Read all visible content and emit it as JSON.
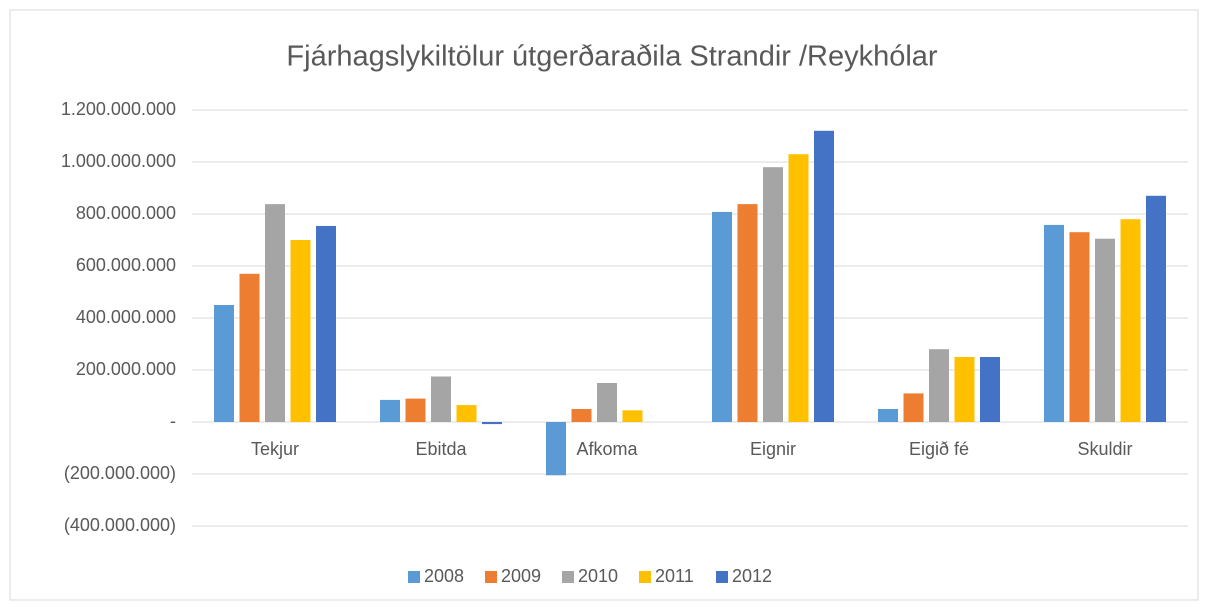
{
  "chart_data": {
    "type": "bar",
    "title": "Fjárhagslykiltölur útgerðaraðila Strandir /Reykhólar",
    "categories": [
      "Tekjur",
      "Ebitda",
      "Afkoma",
      "Eignir",
      "Eigið fé",
      "Skuldir"
    ],
    "series": [
      {
        "name": "2008",
        "color": "#5b9bd5",
        "values": [
          450000000,
          85000000,
          -205000000,
          808000000,
          50000000,
          758000000
        ]
      },
      {
        "name": "2009",
        "color": "#ed7d31",
        "values": [
          570000000,
          90000000,
          50000000,
          838000000,
          110000000,
          730000000
        ]
      },
      {
        "name": "2010",
        "color": "#a5a5a5",
        "values": [
          838000000,
          175000000,
          150000000,
          980000000,
          280000000,
          705000000
        ]
      },
      {
        "name": "2011",
        "color": "#ffc000",
        "values": [
          700000000,
          65000000,
          45000000,
          1030000000,
          250000000,
          780000000
        ]
      },
      {
        "name": "2012",
        "color": "#4472c4",
        "values": [
          754000000,
          -8000000,
          0,
          1120000000,
          250000000,
          870000000
        ]
      }
    ],
    "ylim": [
      -400000000,
      1200000000
    ],
    "yticks": [
      {
        "value": -400000000,
        "label": "(400.000.000)"
      },
      {
        "value": -200000000,
        "label": "(200.000.000)"
      },
      {
        "value": 0,
        "label": "-"
      },
      {
        "value": 200000000,
        "label": "200.000.000"
      },
      {
        "value": 400000000,
        "label": "400.000.000"
      },
      {
        "value": 600000000,
        "label": "600.000.000"
      },
      {
        "value": 800000000,
        "label": "800.000.000"
      },
      {
        "value": 1000000000,
        "label": "1.000.000.000"
      },
      {
        "value": 1200000000,
        "label": "1.200.000.000"
      }
    ],
    "grid": true,
    "legend": "bottom"
  }
}
